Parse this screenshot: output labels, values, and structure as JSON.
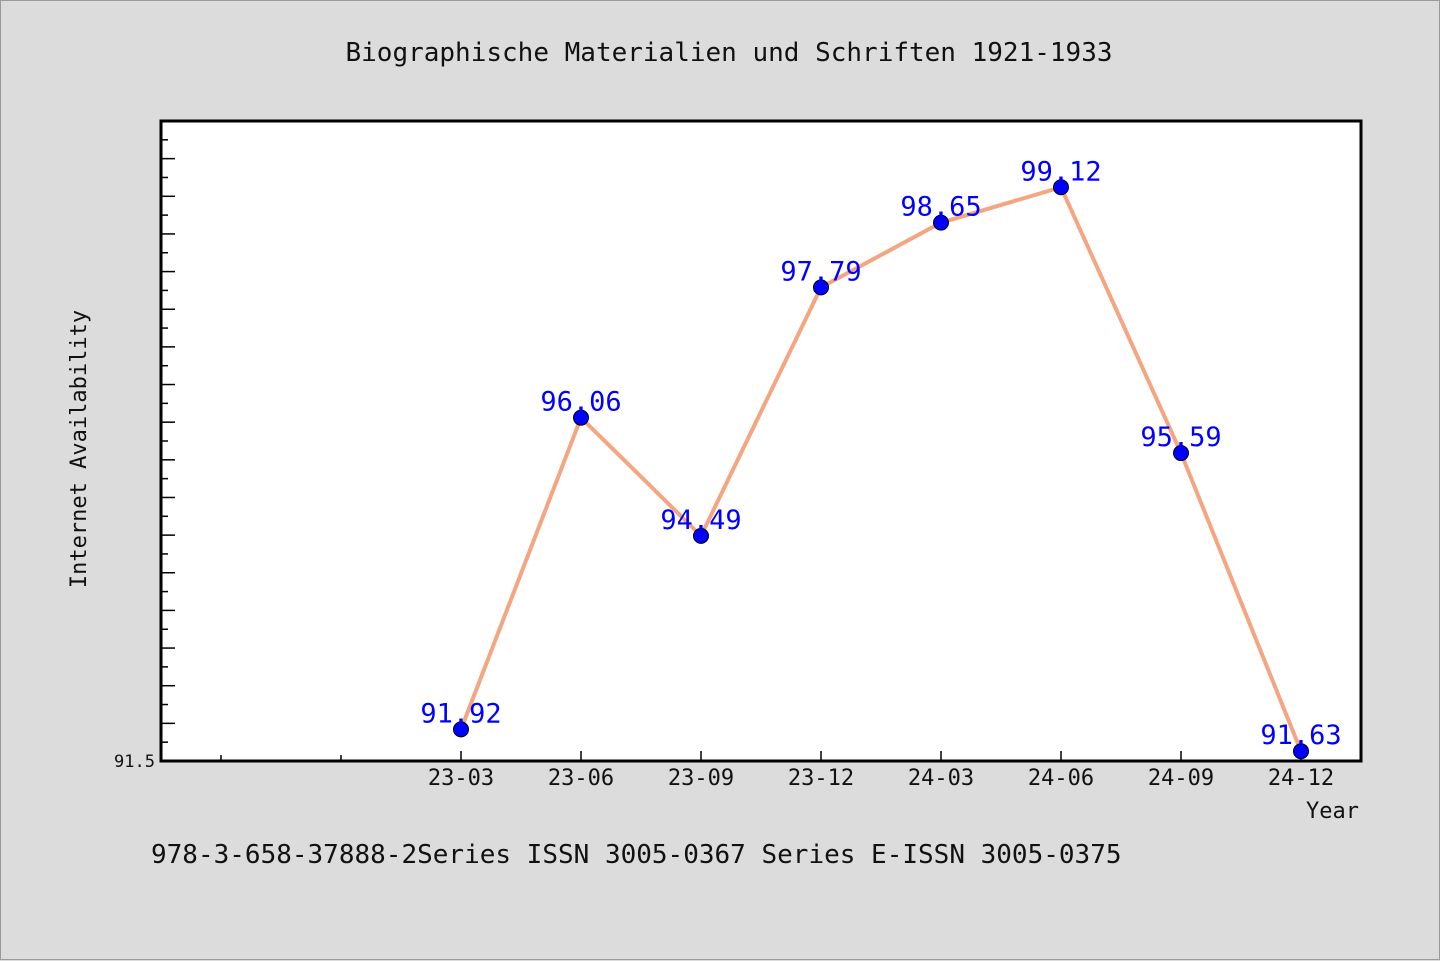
{
  "chart_data": {
    "type": "line",
    "title": "Biographische Materialien und Schriften 1921-1933",
    "xlabel": "Year",
    "ylabel": "Internet Availability",
    "categories": [
      "23-03",
      "23-06",
      "23-09",
      "23-12",
      "24-03",
      "24-06",
      "24-09",
      "24-12"
    ],
    "series": [
      {
        "values": [
          91.92,
          96.06,
          94.49,
          97.79,
          98.65,
          99.12,
          95.59,
          91.63
        ]
      }
    ],
    "ylim": [
      91.5,
      100.0
    ],
    "y_tick_labels": [
      "91.5"
    ],
    "grid": false,
    "line_color": "#f4a582",
    "marker_color": "#0000ff",
    "label_color": "#0000ff",
    "footnote": "978-3-658-37888-2Series ISSN 3005-0367 Series E-ISSN 3005-0375"
  }
}
